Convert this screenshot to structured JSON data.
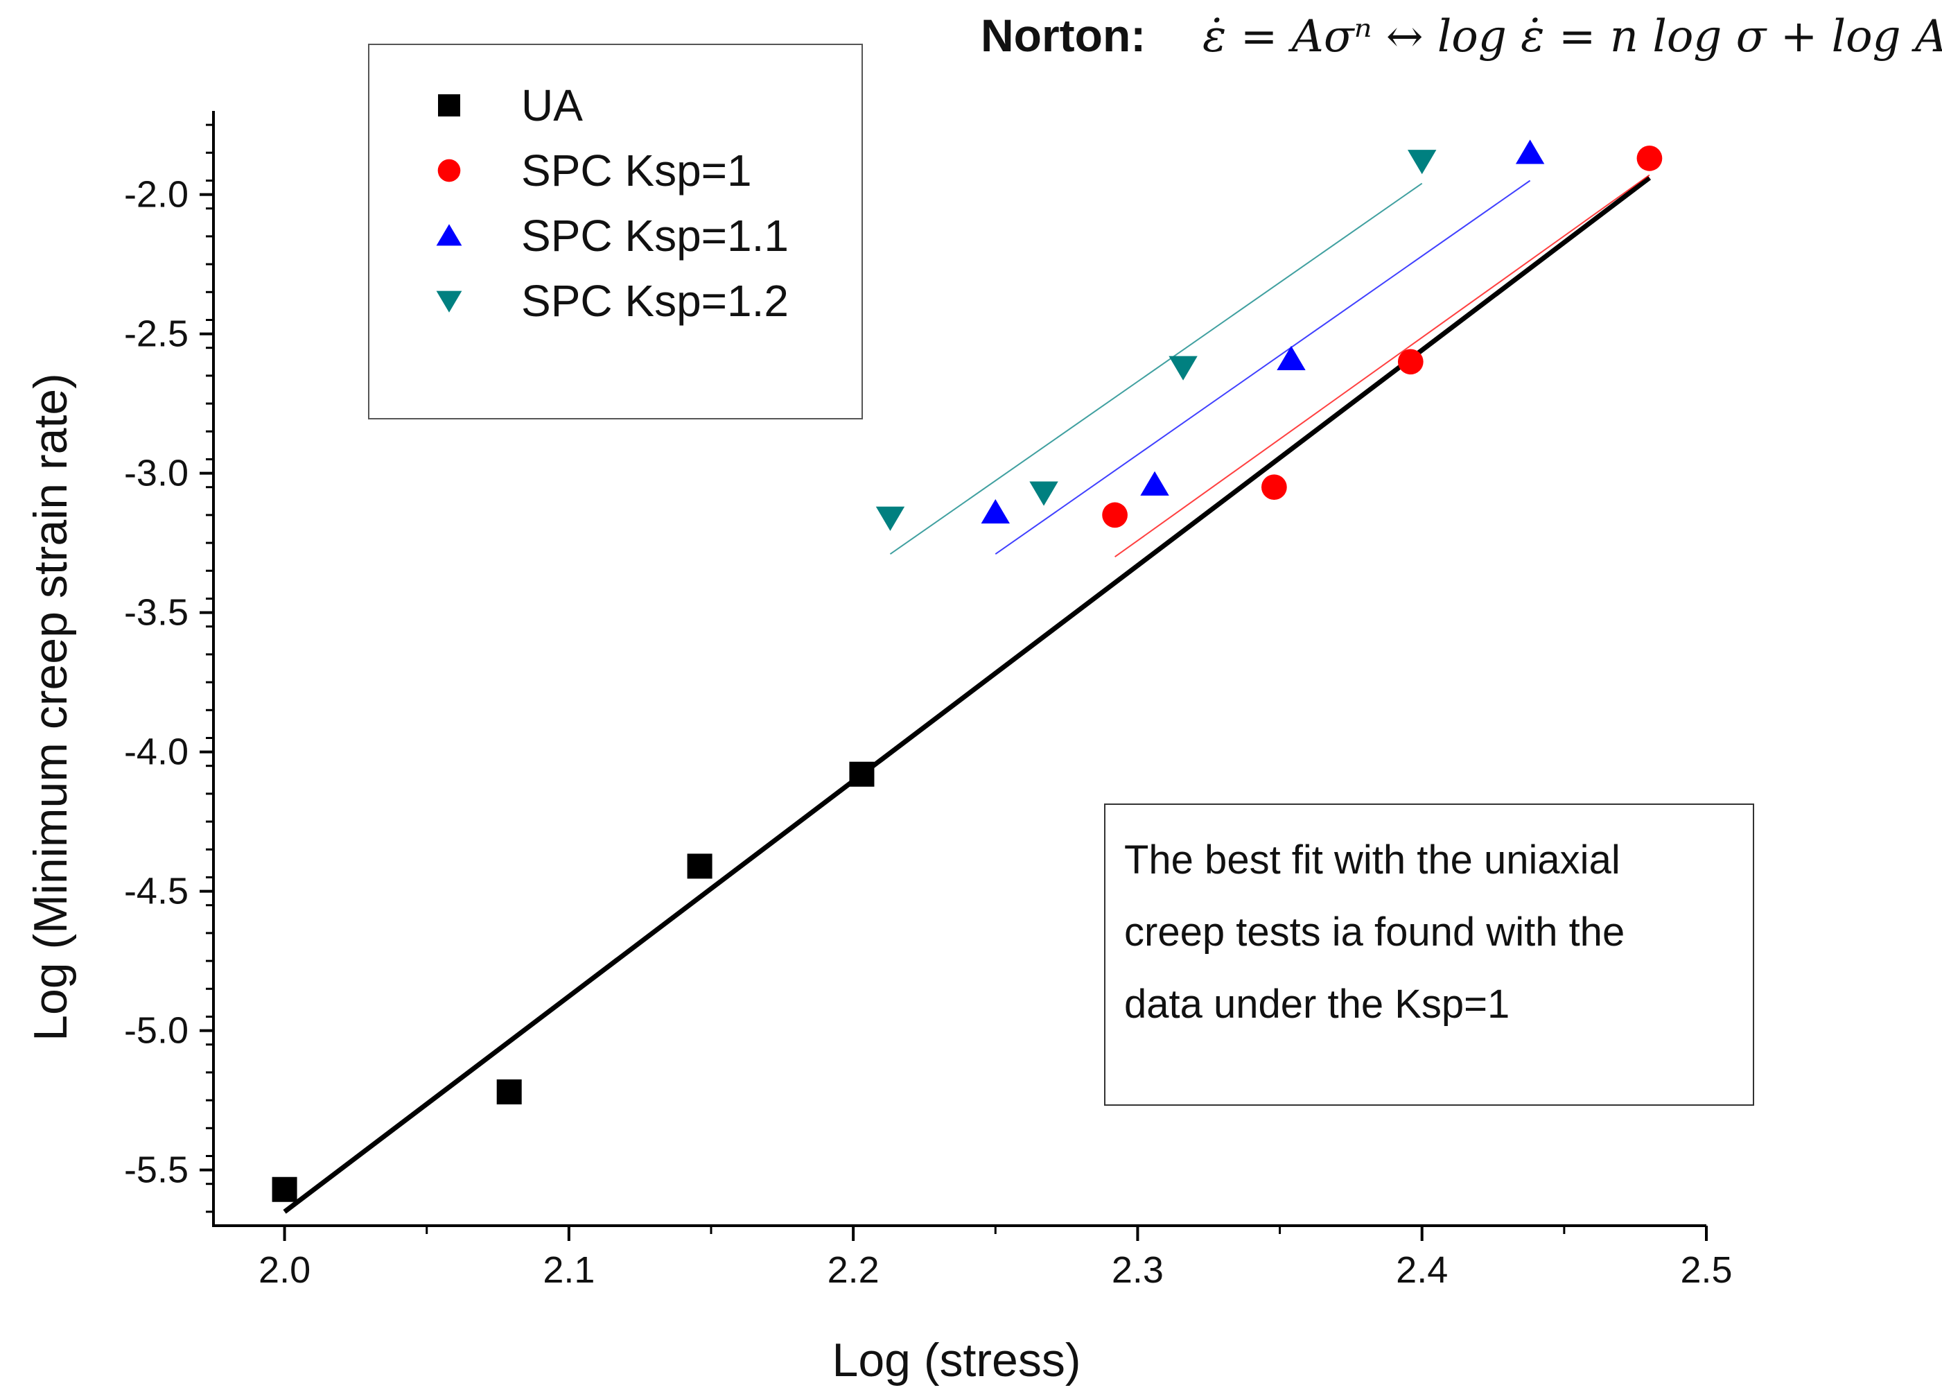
{
  "equation": {
    "label": "Norton:",
    "formula": "ε̇ = Aσⁿ ↔ log ε̇ = n log σ + log A"
  },
  "annotation": {
    "lines": [
      "The best fit with the uniaxial",
      "creep tests ia found with the",
      "data under the Ksp=1"
    ]
  },
  "colors": {
    "UA": "#000000",
    "SPC Ksp=1": "#ff0000",
    "SPC Ksp=1.1": "#0000ff",
    "SPC Ksp=1.2": "#008080"
  },
  "chart_data": {
    "type": "scatter",
    "xlabel": "Log (stress)",
    "ylabel": "Log (Minimum creep strain rate)",
    "xlim": [
      1.975,
      2.5
    ],
    "ylim": [
      -5.7,
      -1.7
    ],
    "xticks": [
      "2.0",
      "2.1",
      "2.2",
      "2.3",
      "2.4",
      "2.5"
    ],
    "yticks": [
      "-2.0",
      "-2.5",
      "-3.0",
      "-3.5",
      "-4.0",
      "-4.5",
      "-5.0",
      "-5.5"
    ],
    "grid": false,
    "legend_position": "top-left",
    "series": [
      {
        "name": "UA",
        "marker": "square",
        "points": [
          [
            2.0,
            -5.57
          ],
          [
            2.079,
            -5.22
          ],
          [
            2.146,
            -4.41
          ],
          [
            2.203,
            -4.08
          ]
        ],
        "fit": [
          [
            2.0,
            -5.65
          ],
          [
            2.48,
            -1.94
          ]
        ]
      },
      {
        "name": "SPC Ksp=1",
        "marker": "circle",
        "points": [
          [
            2.292,
            -3.15
          ],
          [
            2.348,
            -3.05
          ],
          [
            2.396,
            -2.6
          ],
          [
            2.48,
            -1.87
          ]
        ],
        "fit": [
          [
            2.292,
            -3.3
          ],
          [
            2.48,
            -1.93
          ]
        ]
      },
      {
        "name": "SPC Ksp=1.1",
        "marker": "triangle-up",
        "points": [
          [
            2.25,
            -3.14
          ],
          [
            2.306,
            -3.04
          ],
          [
            2.354,
            -2.59
          ],
          [
            2.438,
            -1.85
          ]
        ],
        "fit": [
          [
            2.25,
            -3.29
          ],
          [
            2.438,
            -1.95
          ]
        ]
      },
      {
        "name": "SPC Ksp=1.2",
        "marker": "triangle-down",
        "points": [
          [
            2.213,
            -3.16
          ],
          [
            2.267,
            -3.07
          ],
          [
            2.316,
            -2.62
          ],
          [
            2.4,
            -1.88
          ]
        ],
        "fit": [
          [
            2.213,
            -3.29
          ],
          [
            2.4,
            -1.96
          ]
        ]
      }
    ]
  }
}
